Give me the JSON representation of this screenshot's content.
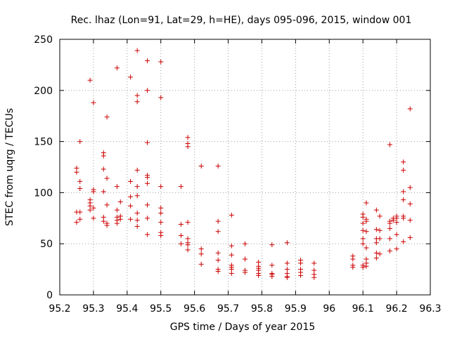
{
  "chart_data": {
    "type": "scatter",
    "title": "Rec. lhaz (Lon=91, Lat=29, h=HE), days 095-096, 2015, window 001",
    "xlabel": "GPS time / Days of year 2015",
    "ylabel": "STEC from uqrg / TECUs",
    "xlim": [
      95.2,
      96.3
    ],
    "ylim": [
      0,
      250
    ],
    "xticks": [
      "95.2",
      "95.3",
      "95.4",
      "95.5",
      "95.6",
      "95.7",
      "95.8",
      "95.9",
      "96",
      "96.1",
      "96.2",
      "96.3"
    ],
    "yticks": [
      "0",
      "50",
      "100",
      "150",
      "200",
      "250"
    ],
    "grid": true,
    "marker": "+",
    "marker_color": "#cc0000",
    "points": [
      [
        95.25,
        124
      ],
      [
        95.25,
        120
      ],
      [
        95.25,
        81
      ],
      [
        95.25,
        71
      ],
      [
        95.26,
        150
      ],
      [
        95.26,
        111
      ],
      [
        95.26,
        104
      ],
      [
        95.26,
        81
      ],
      [
        95.26,
        74
      ],
      [
        95.29,
        210
      ],
      [
        95.29,
        93
      ],
      [
        95.29,
        90
      ],
      [
        95.29,
        87
      ],
      [
        95.29,
        83
      ],
      [
        95.3,
        188
      ],
      [
        95.3,
        103
      ],
      [
        95.3,
        101
      ],
      [
        95.3,
        85
      ],
      [
        95.3,
        75
      ],
      [
        95.33,
        139
      ],
      [
        95.33,
        136
      ],
      [
        95.33,
        123
      ],
      [
        95.33,
        101
      ],
      [
        95.33,
        76
      ],
      [
        95.33,
        72
      ],
      [
        95.34,
        174
      ],
      [
        95.34,
        114
      ],
      [
        95.34,
        88
      ],
      [
        95.34,
        70
      ],
      [
        95.34,
        68
      ],
      [
        95.37,
        222
      ],
      [
        95.37,
        106
      ],
      [
        95.37,
        83
      ],
      [
        95.37,
        76
      ],
      [
        95.37,
        73
      ],
      [
        95.37,
        70
      ],
      [
        95.38,
        91
      ],
      [
        95.38,
        77
      ],
      [
        95.38,
        74
      ],
      [
        95.41,
        213
      ],
      [
        95.41,
        111
      ],
      [
        95.41,
        96
      ],
      [
        95.41,
        87
      ],
      [
        95.41,
        74
      ],
      [
        95.43,
        239
      ],
      [
        95.43,
        195
      ],
      [
        95.43,
        189
      ],
      [
        95.43,
        122
      ],
      [
        95.43,
        106
      ],
      [
        95.43,
        97
      ],
      [
        95.43,
        80
      ],
      [
        95.43,
        73
      ],
      [
        95.43,
        67
      ],
      [
        95.46,
        229
      ],
      [
        95.46,
        200
      ],
      [
        95.46,
        149
      ],
      [
        95.46,
        117
      ],
      [
        95.46,
        115
      ],
      [
        95.46,
        109
      ],
      [
        95.46,
        88
      ],
      [
        95.46,
        75
      ],
      [
        95.46,
        59
      ],
      [
        95.5,
        228
      ],
      [
        95.5,
        193
      ],
      [
        95.5,
        106
      ],
      [
        95.5,
        85
      ],
      [
        95.5,
        80
      ],
      [
        95.5,
        71
      ],
      [
        95.5,
        61
      ],
      [
        95.5,
        58
      ],
      [
        95.56,
        106
      ],
      [
        95.56,
        69
      ],
      [
        95.56,
        58
      ],
      [
        95.56,
        50
      ],
      [
        95.58,
        154
      ],
      [
        95.58,
        148
      ],
      [
        95.58,
        145
      ],
      [
        95.58,
        71
      ],
      [
        95.58,
        55
      ],
      [
        95.58,
        51
      ],
      [
        95.58,
        49
      ],
      [
        95.58,
        44
      ],
      [
        95.62,
        126
      ],
      [
        95.62,
        45
      ],
      [
        95.62,
        40
      ],
      [
        95.62,
        30
      ],
      [
        95.67,
        126
      ],
      [
        95.67,
        72
      ],
      [
        95.67,
        62
      ],
      [
        95.67,
        41
      ],
      [
        95.67,
        34
      ],
      [
        95.67,
        25
      ],
      [
        95.67,
        23
      ],
      [
        95.71,
        78
      ],
      [
        95.71,
        48
      ],
      [
        95.71,
        39
      ],
      [
        95.71,
        29
      ],
      [
        95.71,
        27
      ],
      [
        95.71,
        25
      ],
      [
        95.71,
        21
      ],
      [
        95.75,
        50
      ],
      [
        95.75,
        35
      ],
      [
        95.75,
        24
      ],
      [
        95.75,
        22
      ],
      [
        95.79,
        32
      ],
      [
        95.79,
        28
      ],
      [
        95.79,
        26
      ],
      [
        95.79,
        24
      ],
      [
        95.79,
        21
      ],
      [
        95.79,
        19
      ],
      [
        95.83,
        49
      ],
      [
        95.83,
        29
      ],
      [
        95.83,
        21
      ],
      [
        95.83,
        20
      ],
      [
        95.83,
        18
      ],
      [
        95.875,
        51
      ],
      [
        95.875,
        31
      ],
      [
        95.875,
        25
      ],
      [
        95.875,
        21
      ],
      [
        95.875,
        18
      ],
      [
        95.875,
        17
      ],
      [
        95.915,
        34
      ],
      [
        95.915,
        31
      ],
      [
        95.915,
        25
      ],
      [
        95.915,
        22
      ],
      [
        95.915,
        19
      ],
      [
        95.955,
        31
      ],
      [
        95.955,
        24
      ],
      [
        95.955,
        20
      ],
      [
        95.955,
        17
      ],
      [
        96.07,
        38
      ],
      [
        96.07,
        35
      ],
      [
        96.07,
        29
      ],
      [
        96.07,
        27
      ],
      [
        96.1,
        79
      ],
      [
        96.1,
        76
      ],
      [
        96.1,
        70
      ],
      [
        96.1,
        63
      ],
      [
        96.1,
        55
      ],
      [
        96.1,
        50
      ],
      [
        96.1,
        29
      ],
      [
        96.1,
        27
      ],
      [
        96.11,
        90
      ],
      [
        96.11,
        74
      ],
      [
        96.11,
        72
      ],
      [
        96.11,
        62
      ],
      [
        96.11,
        46
      ],
      [
        96.11,
        35
      ],
      [
        96.11,
        31
      ],
      [
        96.11,
        28
      ],
      [
        96.14,
        83
      ],
      [
        96.14,
        64
      ],
      [
        96.14,
        55
      ],
      [
        96.14,
        51
      ],
      [
        96.14,
        41
      ],
      [
        96.14,
        36
      ],
      [
        96.15,
        77
      ],
      [
        96.15,
        63
      ],
      [
        96.15,
        55
      ],
      [
        96.15,
        40
      ],
      [
        96.18,
        147
      ],
      [
        96.18,
        72
      ],
      [
        96.18,
        70
      ],
      [
        96.18,
        65
      ],
      [
        96.18,
        55
      ],
      [
        96.18,
        43
      ],
      [
        96.19,
        75
      ],
      [
        96.19,
        73
      ],
      [
        96.2,
        77
      ],
      [
        96.2,
        75
      ],
      [
        96.2,
        71
      ],
      [
        96.2,
        59
      ],
      [
        96.2,
        45
      ],
      [
        96.22,
        130
      ],
      [
        96.22,
        122
      ],
      [
        96.22,
        101
      ],
      [
        96.22,
        93
      ],
      [
        96.22,
        77
      ],
      [
        96.22,
        75
      ],
      [
        96.22,
        52
      ],
      [
        96.24,
        182
      ],
      [
        96.24,
        105
      ],
      [
        96.24,
        89
      ],
      [
        96.24,
        73
      ],
      [
        96.24,
        56
      ]
    ]
  }
}
